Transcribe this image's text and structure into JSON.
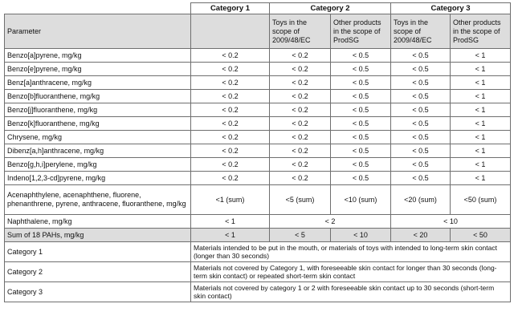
{
  "categories": {
    "cat1": "Category 1",
    "cat2": "Category 2",
    "cat3": "Category 3"
  },
  "subheaders": {
    "parameter": "Parameter",
    "toys": "Toys in the scope of 2009/48/EC",
    "other": "Other products in the scope of ProdSG"
  },
  "rows": [
    {
      "name": "Benzo[a]pyrene, mg/kg",
      "c1": "< 0.2",
      "c2a": "< 0.2",
      "c2b": "< 0.5",
      "c3a": "< 0.5",
      "c3b": "< 1"
    },
    {
      "name": "Benzo[e]pyrene, mg/kg",
      "c1": "< 0.2",
      "c2a": "< 0.2",
      "c2b": "< 0.5",
      "c3a": "< 0.5",
      "c3b": "< 1"
    },
    {
      "name": "Benz[a]anthracene, mg/kg",
      "c1": "< 0.2",
      "c2a": "< 0.2",
      "c2b": "< 0.5",
      "c3a": "< 0.5",
      "c3b": "< 1"
    },
    {
      "name": "Benzo[b]fluoranthene, mg/kg",
      "c1": "< 0.2",
      "c2a": "< 0.2",
      "c2b": "< 0.5",
      "c3a": "< 0.5",
      "c3b": "< 1"
    },
    {
      "name": "Benzo[j]fluoranthene, mg/kg",
      "c1": "< 0.2",
      "c2a": "< 0.2",
      "c2b": "< 0.5",
      "c3a": "< 0.5",
      "c3b": "< 1"
    },
    {
      "name": "Benzo[k]fluoranthene, mg/kg",
      "c1": "< 0.2",
      "c2a": "< 0.2",
      "c2b": "< 0.5",
      "c3a": "< 0.5",
      "c3b": "< 1"
    },
    {
      "name": "Chrysene, mg/kg",
      "c1": "< 0.2",
      "c2a": "< 0.2",
      "c2b": "< 0.5",
      "c3a": "< 0.5",
      "c3b": "< 1"
    },
    {
      "name": "Dibenz[a,h]anthracene, mg/kg",
      "c1": "< 0.2",
      "c2a": "< 0.2",
      "c2b": "< 0.5",
      "c3a": "< 0.5",
      "c3b": "< 1"
    },
    {
      "name": "Benzo[g,h,i]perylene, mg/kg",
      "c1": "< 0.2",
      "c2a": "< 0.2",
      "c2b": "< 0.5",
      "c3a": "< 0.5",
      "c3b": "< 1"
    },
    {
      "name": "Indeno[1,2,3-cd]pyrene, mg/kg",
      "c1": "< 0.2",
      "c2a": "< 0.2",
      "c2b": "< 0.5",
      "c3a": "< 0.5",
      "c3b": "< 1"
    }
  ],
  "multi_row": {
    "name": "Acenaphthylene, acenaphthene, fluorene, phenanthrene, pyrene, anthracene, fluoranthene, mg/kg",
    "c1": "<1 (sum)",
    "c2a": "<5 (sum)",
    "c2b": "<10 (sum)",
    "c3a": "<20 (sum)",
    "c3b": "<50 (sum)"
  },
  "naphthalene": {
    "name": "Naphthalene, mg/kg",
    "c1": "< 1",
    "c2": "< 2",
    "c3": "< 10"
  },
  "sum_row": {
    "name": "Sum of 18 PAHs, mg/kg",
    "c1": "< 1",
    "c2a": "< 5",
    "c2b": "< 10",
    "c3a": "< 20",
    "c3b": "< 50"
  },
  "definitions": [
    {
      "label": "Category 1",
      "text": "Materials intended to be put in the mouth, or materials of toys with intended to long-term skin contact (longer than 30 seconds)"
    },
    {
      "label": "Category 2",
      "text": "Materials not covered by Category 1, with foreseeable skin contact for longer than 30 seconds (long-term skin contact) or repeated short-term skin contact"
    },
    {
      "label": "Category 3",
      "text": "Materials not covered by category 1 or 2 with foreseeable skin contact up to 30 seconds (short-term skin contact)"
    }
  ]
}
